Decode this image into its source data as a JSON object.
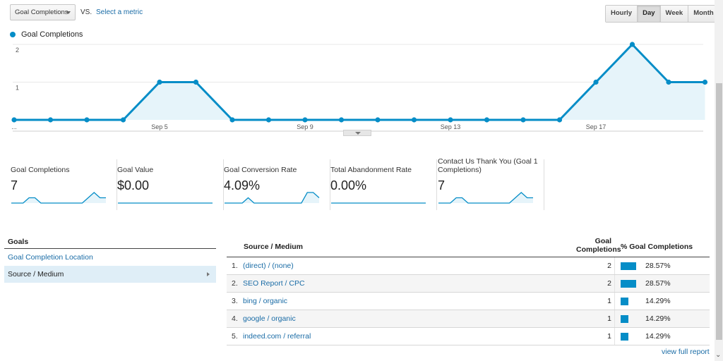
{
  "toolbar": {
    "metric_select": "Goal Completions",
    "vs_label": "VS.",
    "select_metric": "Select a metric",
    "periods": [
      "Hourly",
      "Day",
      "Week",
      "Month"
    ],
    "active_period": "Day"
  },
  "chart_data": {
    "type": "area",
    "title": "",
    "series": [
      {
        "name": "Goal Completions",
        "values": [
          0,
          0,
          0,
          0,
          1,
          1,
          0,
          0,
          0,
          0,
          0,
          0,
          0,
          0,
          0,
          0,
          1,
          2,
          1,
          1
        ]
      }
    ],
    "x_tick_labels": [
      "...",
      "Sep 5",
      "Sep 9",
      "Sep 13",
      "Sep 17"
    ],
    "y_ticks": [
      1,
      2
    ],
    "ylim": [
      0,
      2
    ],
    "grid": true,
    "legend": "top-left",
    "color": "#058dc7"
  },
  "scorecards": [
    {
      "label": "Goal Completions",
      "value": "7",
      "spark": [
        0,
        0,
        0,
        1,
        1,
        0,
        0,
        0,
        0,
        0,
        0,
        0,
        0,
        1,
        2,
        1,
        1
      ]
    },
    {
      "label": "Goal Value",
      "value": "$0.00",
      "spark": [
        0,
        0,
        0,
        0,
        0,
        0,
        0,
        0,
        0,
        0,
        0,
        0,
        0,
        0,
        0,
        0,
        0
      ]
    },
    {
      "label": "Goal Conversion Rate",
      "value": "4.09%",
      "spark": [
        0,
        0,
        0,
        0,
        1,
        0,
        0,
        0,
        0,
        0,
        0,
        0,
        0,
        0,
        2,
        2,
        1
      ]
    },
    {
      "label": "Total Abandonment Rate",
      "value": "0.00%",
      "spark": [
        0,
        0,
        0,
        0,
        0,
        0,
        0,
        0,
        0,
        0,
        0,
        0,
        0,
        0,
        0,
        0,
        0
      ]
    },
    {
      "label": "Contact Us Thank You (Goal 1 Completions)",
      "value": "7",
      "spark": [
        0,
        0,
        0,
        1,
        1,
        0,
        0,
        0,
        0,
        0,
        0,
        0,
        0,
        1,
        2,
        1,
        1
      ]
    }
  ],
  "goals_panel": {
    "heading": "Goals",
    "items": [
      "Goal Completion Location",
      "Source / Medium"
    ]
  },
  "table": {
    "col_source": "Source / Medium",
    "col_completions": "Goal Completions",
    "col_pct": "% Goal Completions",
    "rows": [
      {
        "num": "1.",
        "source": "(direct) / (none)",
        "count": "2",
        "pct": "28.57%",
        "share": 0.2857
      },
      {
        "num": "2.",
        "source": "SEO Report / CPC",
        "count": "2",
        "pct": "28.57%",
        "share": 0.2857
      },
      {
        "num": "3.",
        "source": "bing / organic",
        "count": "1",
        "pct": "14.29%",
        "share": 0.1429
      },
      {
        "num": "4.",
        "source": "google / organic",
        "count": "1",
        "pct": "14.29%",
        "share": 0.1429
      },
      {
        "num": "5.",
        "source": "indeed.com / referral",
        "count": "1",
        "pct": "14.29%",
        "share": 0.1429
      }
    ],
    "view_full": "view full report"
  }
}
